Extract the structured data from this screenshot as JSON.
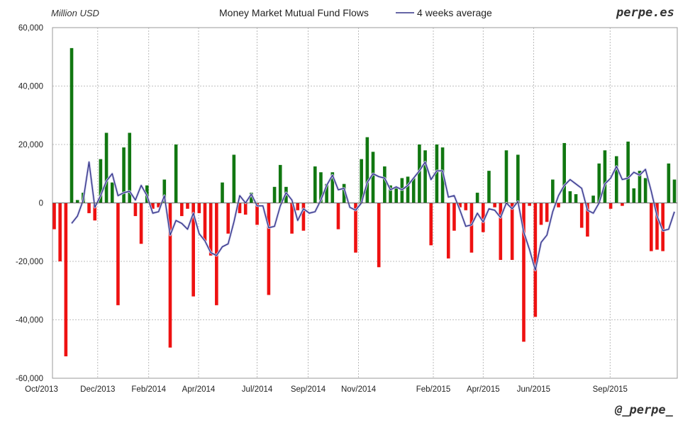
{
  "header": {
    "unit_label": "Million USD",
    "title": "Money Market Mutual Fund Flows",
    "legend_label": "4 weeks average",
    "watermark_top": "perpe.es",
    "watermark_bottom": "@_perpe_"
  },
  "colors": {
    "positive_bar": "#117711",
    "negative_bar": "#ee1111",
    "average_line": "#333388",
    "grid": "#aaaaaa"
  },
  "chart_data": {
    "type": "bar",
    "title": "Money Market Mutual Fund Flows",
    "ylabel": "Million USD",
    "xlabel": "",
    "ylim": [
      -60000,
      60000
    ],
    "y_ticks": [
      -60000,
      -40000,
      -20000,
      0,
      20000,
      40000,
      60000
    ],
    "y_tick_labels": [
      "-60,000",
      "-40,000",
      "-20,000",
      "0",
      "20,000",
      "40,000",
      "60,000"
    ],
    "x_tick_labels": [
      "Oct/2013",
      "Dec/2013",
      "Feb/2014",
      "Apr/2014",
      "Jul/2014",
      "Sep/2014",
      "Nov/2014",
      "Feb/2015",
      "Apr/2015",
      "Jun/2015",
      "Sep/2015"
    ],
    "grid": true,
    "legend": "top-center",
    "series": [
      {
        "name": "",
        "kind": "bar",
        "values": [
          -9000,
          -20000,
          -52500,
          53000,
          1000,
          3500,
          -3500,
          -6000,
          15000,
          24000,
          7000,
          -35000,
          19000,
          24000,
          -4500,
          -14000,
          6000,
          -2000,
          -1500,
          8000,
          -49500,
          20000,
          -4500,
          -2000,
          -32000,
          -3500,
          -13000,
          -18000,
          -35000,
          7000,
          -10500,
          16500,
          -3500,
          -4000,
          3500,
          -7500,
          0,
          -31500,
          5500,
          13000,
          5500,
          -10500,
          -2500,
          -9500,
          0,
          12500,
          10500,
          6500,
          10500,
          -9000,
          6500,
          0,
          -17000,
          15000,
          22500,
          17500,
          -22000,
          12500,
          6000,
          5500,
          8500,
          9000,
          8500,
          20000,
          18000,
          -14500,
          20000,
          19000,
          -19000,
          -9500,
          -1500,
          -2500,
          -17000,
          3500,
          -10000,
          11000,
          -1500,
          -19500,
          18000,
          -19500,
          16500,
          -47500,
          -1000,
          -39000,
          -7500,
          -6500,
          8000,
          -1500,
          20500,
          4000,
          3000,
          -8500,
          -11500,
          2500,
          13500,
          18000,
          -2000,
          16000,
          -1000,
          21000,
          5000,
          11000,
          8500,
          -16500,
          -16000,
          -16500,
          13500,
          8000
        ]
      },
      {
        "name": "4 weeks average",
        "kind": "line",
        "values": [
          null,
          null,
          null,
          -7000,
          -4500,
          1000,
          14000,
          -1500,
          2500,
          7500,
          10000,
          2500,
          3500,
          4000,
          1000,
          6000,
          2500,
          -3500,
          -3000,
          2500,
          -11000,
          -6000,
          -7000,
          -9000,
          -3500,
          -10500,
          -13000,
          -17000,
          -18000,
          -15000,
          -14000,
          -6500,
          2500,
          0,
          3000,
          -1000,
          -1000,
          -8500,
          -8000,
          -1000,
          3500,
          1000,
          -6000,
          -2000,
          -3500,
          -3000,
          1000,
          6000,
          9500,
          4500,
          5000,
          -1500,
          -2500,
          0,
          7000,
          10000,
          9000,
          8500,
          4500,
          5500,
          4500,
          6000,
          8500,
          11000,
          14000,
          8000,
          11000,
          11000,
          2000,
          2500,
          -2500,
          -8000,
          -7500,
          -3500,
          -6500,
          -2000,
          -2500,
          -5000,
          0,
          -2000,
          500,
          -10000,
          -16000,
          -23000,
          -13500,
          -11000,
          -3000,
          2500,
          6000,
          8000,
          6500,
          5000,
          -2500,
          -3500,
          0,
          6500,
          8500,
          12500,
          8000,
          8500,
          10500,
          9500,
          11500,
          4000,
          -4500,
          -9500,
          -9000,
          -3000
        ]
      }
    ]
  }
}
